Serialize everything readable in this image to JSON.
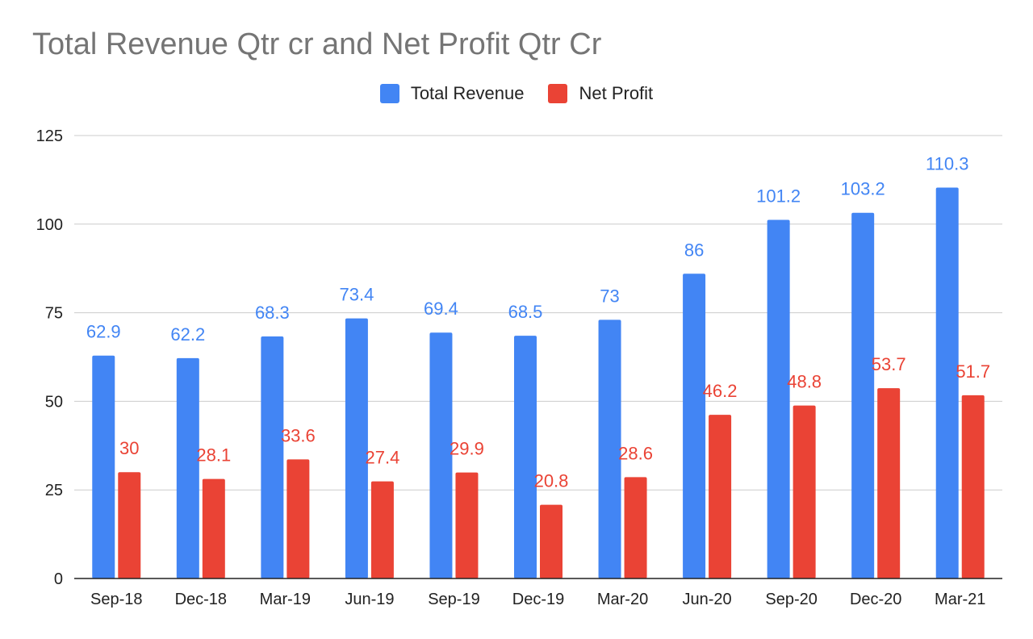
{
  "chart_data": {
    "type": "bar",
    "title": "Total Revenue Qtr cr and Net Profit Qtr Cr",
    "xlabel": "",
    "ylabel": "",
    "ylim": [
      0,
      125
    ],
    "yticks": [
      "0",
      "25",
      "50",
      "75",
      "100",
      "125"
    ],
    "grid": true,
    "legend_position": "top-center",
    "categories": [
      "Sep-18",
      "Dec-18",
      "Mar-19",
      "Jun-19",
      "Sep-19",
      "Dec-19",
      "Mar-20",
      "Jun-20",
      "Sep-20",
      "Dec-20",
      "Mar-21"
    ],
    "series": [
      {
        "name": "Total Revenue",
        "color": "#4285F4",
        "values": [
          62.9,
          62.2,
          68.3,
          73.4,
          69.4,
          68.5,
          73,
          86,
          101.2,
          103.2,
          110.3
        ]
      },
      {
        "name": "Net Profit",
        "color": "#EA4335",
        "values": [
          30,
          28.1,
          33.6,
          27.4,
          29.9,
          20.8,
          28.6,
          46.2,
          48.8,
          53.7,
          51.7
        ]
      }
    ]
  },
  "colors": {
    "title": "#757575",
    "gridline": "#cccccc",
    "axis": "#222222"
  }
}
